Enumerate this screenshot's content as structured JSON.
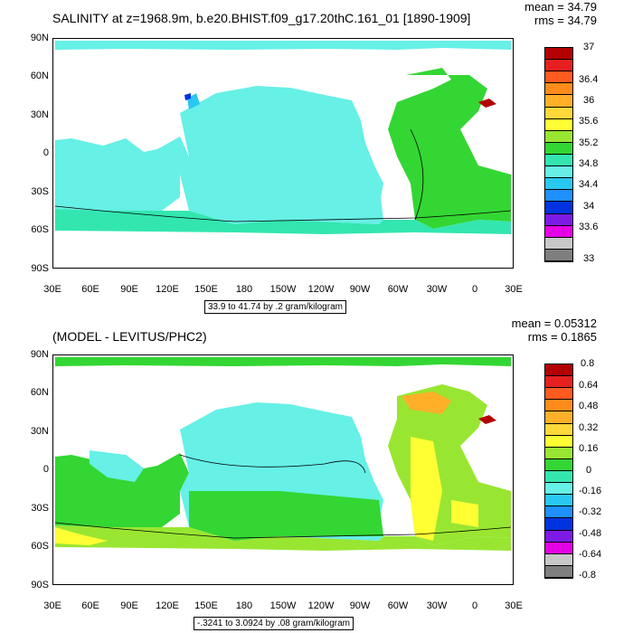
{
  "top": {
    "title": "SALINITY at z=1968.9m, b.e20.BHIST.f09_g17.20thC.161_01 [1890-1909]",
    "mean": "mean = 34.79",
    "rms": "rms = 34.79",
    "range": "33.9 to 41.74 by .2 gram/kilogram",
    "colorbar_labels": [
      "37",
      "36.4",
      "36",
      "35.6",
      "35.2",
      "34.8",
      "34.4",
      "34",
      "33.6",
      "33"
    ],
    "colors": [
      "#b30000",
      "#e62020",
      "#ff5a1f",
      "#ff8c1a",
      "#ffb028",
      "#ffd83a",
      "#ffff33",
      "#99e632",
      "#33d633",
      "#33e6b0",
      "#66f0e6",
      "#29c8f0",
      "#1e90ff",
      "#0033e0",
      "#7d1ae6",
      "#e600e6",
      "#c8c8c8",
      "#7f7f7f"
    ]
  },
  "bottom": {
    "title": "(MODEL - LEVITUS/PHC2)",
    "mean": "mean = 0.05312",
    "rms": "rms = 0.1865",
    "range": "-.3241 to 3.0924 by .08 gram/kilogram",
    "colorbar_labels": [
      "0.8",
      "0.64",
      "0.48",
      "0.32",
      "0.16",
      "0",
      "-0.16",
      "-0.32",
      "-0.48",
      "-0.64",
      "-0.8"
    ],
    "colors": [
      "#b30000",
      "#e62020",
      "#ff5a1f",
      "#ff8c1a",
      "#ffb028",
      "#ffd83a",
      "#ffff33",
      "#99e632",
      "#33d633",
      "#33e6b0",
      "#66f0e6",
      "#29c8f0",
      "#1e90ff",
      "#0033e0",
      "#7d1ae6",
      "#e600e6",
      "#c8c8c8",
      "#7f7f7f"
    ]
  },
  "lat_labels": [
    "90N",
    "60N",
    "30N",
    "0",
    "30S",
    "60S",
    "90S"
  ],
  "lon_labels": [
    "30E",
    "60E",
    "90E",
    "120E",
    "150E",
    "180",
    "150W",
    "120W",
    "90W",
    "60W",
    "30W",
    "0",
    "30E"
  ]
}
